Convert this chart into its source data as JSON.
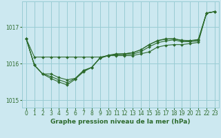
{
  "title": "Graphe pression niveau de la mer (hPa)",
  "bg_color": "#cce8f0",
  "grid_color": "#99ccd4",
  "line_color": "#2d6b2d",
  "marker_color": "#2d6b2d",
  "ylim": [
    1014.8,
    1017.7
  ],
  "yticks": [
    1015,
    1016,
    1017
  ],
  "xticks": [
    0,
    1,
    2,
    3,
    4,
    5,
    6,
    7,
    8,
    9,
    10,
    11,
    12,
    13,
    14,
    15,
    16,
    17,
    18,
    19,
    20,
    21,
    22,
    23
  ],
  "series": [
    [
      1016.68,
      1016.18,
      1016.18,
      1016.18,
      1016.18,
      1016.18,
      1016.18,
      1016.18,
      1016.18,
      1016.18,
      1016.22,
      1016.22,
      1016.22,
      1016.22,
      1016.27,
      1016.32,
      1016.45,
      1016.5,
      1016.52,
      1016.52,
      1016.55,
      1016.58,
      1017.38,
      1017.42
    ],
    [
      1016.68,
      1015.96,
      1015.72,
      1015.72,
      1015.62,
      1015.56,
      1015.6,
      1015.82,
      1015.9,
      1016.15,
      1016.22,
      1016.25,
      1016.25,
      1016.26,
      1016.33,
      1016.46,
      1016.57,
      1016.62,
      1016.65,
      1016.6,
      1016.6,
      1016.62,
      1017.38,
      1017.42
    ],
    [
      1016.68,
      1015.96,
      1015.72,
      1015.6,
      1015.5,
      1015.42,
      1015.58,
      1015.78,
      1015.9,
      1016.15,
      1016.22,
      1016.25,
      1016.27,
      1016.3,
      1016.38,
      1016.52,
      1016.62,
      1016.67,
      1016.68,
      1016.63,
      1016.62,
      1016.65,
      1017.38,
      1017.42
    ],
    [
      1016.68,
      1015.96,
      1015.72,
      1015.65,
      1015.56,
      1015.48,
      1015.6,
      1015.8,
      1015.9,
      1016.16,
      1016.23,
      1016.27,
      1016.27,
      1016.3,
      1016.38,
      1016.52,
      1016.63,
      1016.68,
      1016.68,
      1016.64,
      1016.63,
      1016.66,
      1017.38,
      1017.42
    ]
  ]
}
